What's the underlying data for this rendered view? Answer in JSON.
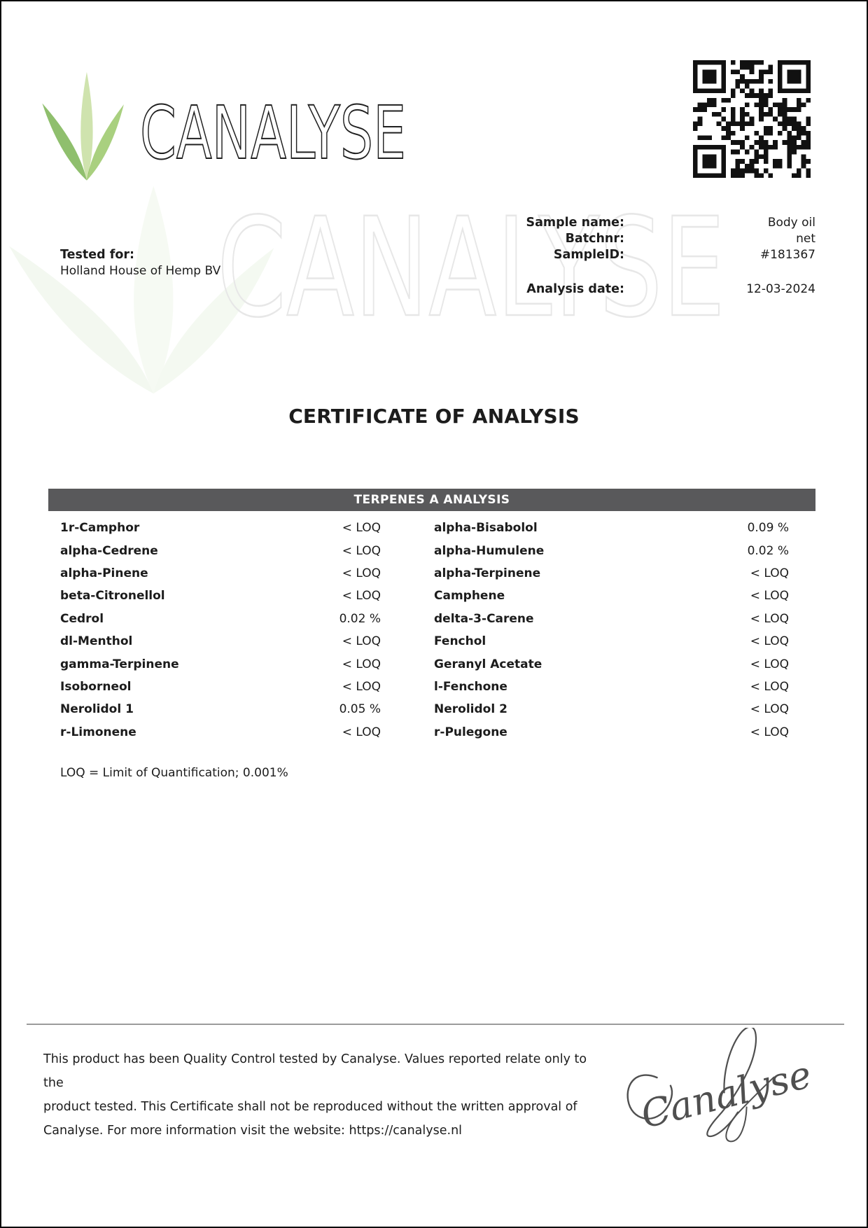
{
  "brand": {
    "logo_text": "CANALYSE",
    "watermark_text": "CANALYSE",
    "leaf_colors": {
      "left": "#8fbf6d",
      "center": "#cfe3ae",
      "right": "#a9d07f"
    }
  },
  "icons": {
    "qr": "qr-code",
    "logo_leaves": "leaf-logo"
  },
  "header": {
    "tested_for_label": "Tested for:",
    "tested_for_value": "Holland House of Hemp BV",
    "fields": [
      {
        "label": "Sample name:",
        "value": "Body oil"
      },
      {
        "label": "Batchnr:",
        "value": "net"
      },
      {
        "label": "SampleID:",
        "value": "#181367"
      }
    ],
    "analysis_date_label": "Analysis date:",
    "analysis_date_value": "12-03-2024"
  },
  "title": "CERTIFICATE OF ANALYSIS",
  "table": {
    "header": "TERPENES A ANALYSIS",
    "header_bg": "#59595b",
    "rows": [
      {
        "left_name": "1r-Camphor",
        "left_value": "< LOQ",
        "right_name": "alpha-Bisabolol",
        "right_value": "0.09 %"
      },
      {
        "left_name": "alpha-Cedrene",
        "left_value": "< LOQ",
        "right_name": "alpha-Humulene",
        "right_value": "0.02 %"
      },
      {
        "left_name": "alpha-Pinene",
        "left_value": "< LOQ",
        "right_name": "alpha-Terpinene",
        "right_value": "< LOQ"
      },
      {
        "left_name": "beta-Citronellol",
        "left_value": "< LOQ",
        "right_name": "Camphene",
        "right_value": "< LOQ"
      },
      {
        "left_name": "Cedrol",
        "left_value": "0.02 %",
        "right_name": "delta-3-Carene",
        "right_value": "< LOQ"
      },
      {
        "left_name": "dl-Menthol",
        "left_value": "< LOQ",
        "right_name": "Fenchol",
        "right_value": "< LOQ"
      },
      {
        "left_name": "gamma-Terpinene",
        "left_value": "< LOQ",
        "right_name": "Geranyl Acetate",
        "right_value": "< LOQ"
      },
      {
        "left_name": "Isoborneol",
        "left_value": "< LOQ",
        "right_name": "l-Fenchone",
        "right_value": "< LOQ"
      },
      {
        "left_name": "Nerolidol 1",
        "left_value": "0.05 %",
        "right_name": "Nerolidol 2",
        "right_value": "< LOQ"
      },
      {
        "left_name": "r-Limonene",
        "left_value": "< LOQ",
        "right_name": "r-Pulegone",
        "right_value": "< LOQ"
      }
    ]
  },
  "loq_note": "LOQ = Limit of Quantification; 0.001%",
  "footer": {
    "lines": [
      "This product has been Quality Control tested by Canalyse. Values reported relate only to the",
      "product tested. This Certificate shall not be reproduced without the written approval of",
      "Canalyse. For more information visit the website: https://canalyse.nl"
    ],
    "signature_text": "Canalyse"
  }
}
